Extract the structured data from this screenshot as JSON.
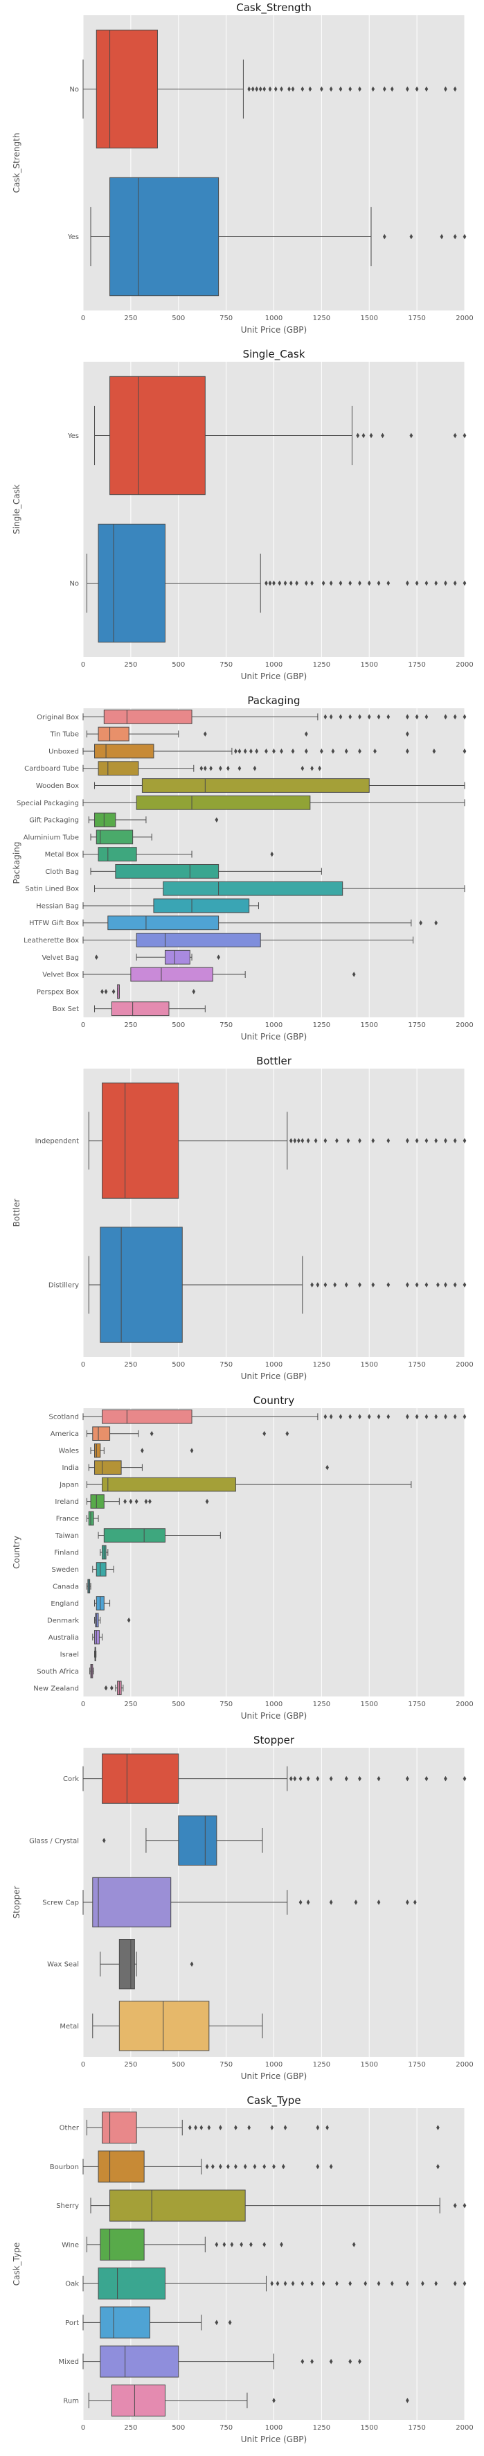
{
  "chart_data": [
    {
      "type": "boxplot-horizontal",
      "title": "Cask_Strength",
      "xlabel": "Unit Price (GBP)",
      "ylabel": "Cask_Strength",
      "xlim": [
        0,
        2000
      ],
      "xticks": [
        "0",
        "250",
        "500",
        "750",
        "1000",
        "1250",
        "1500",
        "1750",
        "2000"
      ],
      "grid": true,
      "categories": [
        {
          "label": "No",
          "color": "#D9533F",
          "min": 0,
          "q1": 70,
          "median": 140,
          "q3": 390,
          "max": 840,
          "outliers": [
            870,
            890,
            910,
            930,
            950,
            980,
            1010,
            1040,
            1080,
            1100,
            1150,
            1190,
            1250,
            1300,
            1350,
            1400,
            1450,
            1520,
            1580,
            1620,
            1700,
            1750,
            1800,
            1900,
            1950
          ]
        },
        {
          "label": "Yes",
          "color": "#3A86BE",
          "min": 40,
          "q1": 140,
          "median": 290,
          "q3": 710,
          "max": 1510,
          "outliers": [
            1580,
            1720,
            1880,
            1950,
            2000
          ]
        }
      ]
    },
    {
      "type": "boxplot-horizontal",
      "title": "Single_Cask",
      "xlabel": "Unit Price (GBP)",
      "ylabel": "Single_Cask",
      "xlim": [
        0,
        2000
      ],
      "xticks": [
        "0",
        "250",
        "500",
        "750",
        "1000",
        "1250",
        "1500",
        "1750",
        "2000"
      ],
      "grid": true,
      "categories": [
        {
          "label": "Yes",
          "color": "#D9533F",
          "min": 60,
          "q1": 140,
          "median": 290,
          "q3": 640,
          "max": 1410,
          "outliers": [
            1440,
            1470,
            1510,
            1570,
            1720,
            1950,
            2000
          ]
        },
        {
          "label": "No",
          "color": "#3A86BE",
          "min": 20,
          "q1": 80,
          "median": 160,
          "q3": 430,
          "max": 930,
          "outliers": [
            960,
            980,
            1000,
            1030,
            1060,
            1090,
            1120,
            1170,
            1200,
            1260,
            1300,
            1350,
            1400,
            1450,
            1500,
            1550,
            1600,
            1700,
            1750,
            1800,
            1850,
            1900,
            1950,
            2000
          ]
        }
      ]
    },
    {
      "type": "boxplot-horizontal",
      "title": "Packaging",
      "xlabel": "Unit Price (GBP)",
      "ylabel": "Packaging",
      "xlim": [
        0,
        2000
      ],
      "xticks": [
        "0",
        "250",
        "500",
        "750",
        "1000",
        "1250",
        "1500",
        "1750",
        "2000"
      ],
      "grid": true,
      "categories": [
        {
          "label": "Original Box",
          "color": "#E8888A",
          "min": 0,
          "q1": 110,
          "median": 230,
          "q3": 570,
          "max": 1230,
          "outliers": [
            1270,
            1300,
            1350,
            1400,
            1450,
            1500,
            1550,
            1600,
            1700,
            1750,
            1800,
            1900,
            1950,
            2000
          ]
        },
        {
          "label": "Tin Tube",
          "color": "#E8906A",
          "min": 20,
          "q1": 80,
          "median": 140,
          "q3": 240,
          "max": 500,
          "outliers": [
            640,
            1170,
            1700
          ]
        },
        {
          "label": "Unboxed",
          "color": "#C78A36",
          "min": 0,
          "q1": 60,
          "median": 120,
          "q3": 370,
          "max": 780,
          "outliers": [
            800,
            820,
            850,
            880,
            910,
            960,
            1000,
            1040,
            1100,
            1170,
            1250,
            1310,
            1380,
            1450,
            1530,
            1700,
            1840,
            2000
          ]
        },
        {
          "label": "Cardboard Tube",
          "color": "#B49336",
          "min": 0,
          "q1": 80,
          "median": 130,
          "q3": 290,
          "max": 580,
          "outliers": [
            620,
            640,
            670,
            720,
            760,
            820,
            900,
            1150,
            1200,
            1240
          ]
        },
        {
          "label": "Wooden Box",
          "color": "#A4A038",
          "min": 60,
          "q1": 310,
          "median": 640,
          "q3": 1500,
          "max": 2000,
          "outliers": []
        },
        {
          "label": "Special Packaging",
          "color": "#91A336",
          "min": 0,
          "q1": 280,
          "median": 570,
          "q3": 1190,
          "max": 2000,
          "outliers": []
        },
        {
          "label": "Gift Packaging",
          "color": "#58AA4A",
          "min": 30,
          "q1": 60,
          "median": 110,
          "q3": 170,
          "max": 330,
          "outliers": [
            700
          ]
        },
        {
          "label": "Aluminium Tube",
          "color": "#4AAA6A",
          "min": 40,
          "q1": 70,
          "median": 90,
          "q3": 260,
          "max": 360,
          "outliers": []
        },
        {
          "label": "Metal Box",
          "color": "#3EA77E",
          "min": 0,
          "q1": 80,
          "median": 130,
          "q3": 280,
          "max": 570,
          "outliers": [
            990
          ]
        },
        {
          "label": "Cloth Bag",
          "color": "#3AA690",
          "min": 40,
          "q1": 170,
          "median": 560,
          "q3": 710,
          "max": 1250,
          "outliers": []
        },
        {
          "label": "Satin Lined Box",
          "color": "#3CA8A5",
          "min": 60,
          "q1": 420,
          "median": 710,
          "q3": 1360,
          "max": 2000,
          "outliers": []
        },
        {
          "label": "Hessian Bag",
          "color": "#3AA5B4",
          "min": 0,
          "q1": 370,
          "median": 570,
          "q3": 870,
          "max": 920,
          "outliers": []
        },
        {
          "label": "HTFW Gift Box",
          "color": "#4FA3D4",
          "min": 0,
          "q1": 130,
          "median": 330,
          "q3": 710,
          "max": 1720,
          "outliers": [
            1770,
            1850
          ]
        },
        {
          "label": "Leatherette Box",
          "color": "#7F8EDC",
          "min": 0,
          "q1": 280,
          "median": 430,
          "q3": 930,
          "max": 1730,
          "outliers": []
        },
        {
          "label": "Velvet Bag",
          "color": "#A98AE0",
          "min": 280,
          "q1": 430,
          "median": 480,
          "q3": 560,
          "max": 570,
          "outliers": [
            70,
            710
          ]
        },
        {
          "label": "Velvet Box",
          "color": "#C98AD8",
          "min": 0,
          "q1": 250,
          "median": 410,
          "q3": 680,
          "max": 850,
          "outliers": [
            1420
          ]
        },
        {
          "label": "Perspex Box",
          "color": "#D987CC",
          "min": 180,
          "q1": 180,
          "median": 190,
          "q3": 190,
          "max": 190,
          "outliers": [
            100,
            120,
            160,
            580
          ]
        },
        {
          "label": "Box Set",
          "color": "#E48BB0",
          "min": 60,
          "q1": 150,
          "median": 260,
          "q3": 450,
          "max": 640,
          "outliers": []
        }
      ]
    },
    {
      "type": "boxplot-horizontal",
      "title": "Bottler",
      "xlabel": "Unit Price (GBP)",
      "ylabel": "Bottler",
      "xlim": [
        0,
        2000
      ],
      "xticks": [
        "0",
        "250",
        "500",
        "750",
        "1000",
        "1250",
        "1500",
        "1750",
        "2000"
      ],
      "grid": true,
      "categories": [
        {
          "label": "Independent",
          "color": "#D9533F",
          "min": 30,
          "q1": 100,
          "median": 220,
          "q3": 500,
          "max": 1070,
          "outliers": [
            1090,
            1110,
            1130,
            1150,
            1180,
            1220,
            1270,
            1330,
            1390,
            1450,
            1520,
            1600,
            1700,
            1750,
            1800,
            1850,
            1900,
            1950,
            2000
          ]
        },
        {
          "label": "Distillery",
          "color": "#3A86BE",
          "min": 30,
          "q1": 90,
          "median": 200,
          "q3": 520,
          "max": 1150,
          "outliers": [
            1200,
            1230,
            1270,
            1320,
            1380,
            1450,
            1520,
            1600,
            1700,
            1750,
            1800,
            1860,
            1900,
            1950,
            2000
          ]
        }
      ]
    },
    {
      "type": "boxplot-horizontal",
      "title": "Country",
      "xlabel": "Unit Price (GBP)",
      "ylabel": "Country",
      "xlim": [
        0,
        2000
      ],
      "xticks": [
        "0",
        "250",
        "500",
        "750",
        "1000",
        "1250",
        "1500",
        "1750",
        "2000"
      ],
      "grid": true,
      "categories": [
        {
          "label": "Scotland",
          "color": "#E8888A",
          "min": 0,
          "q1": 100,
          "median": 230,
          "q3": 570,
          "max": 1230,
          "outliers": [
            1270,
            1300,
            1350,
            1400,
            1450,
            1500,
            1550,
            1600,
            1700,
            1750,
            1800,
            1850,
            1900,
            1950,
            2000
          ]
        },
        {
          "label": "America",
          "color": "#E8906A",
          "min": 20,
          "q1": 50,
          "median": 80,
          "q3": 140,
          "max": 290,
          "outliers": [
            360,
            950,
            1070
          ]
        },
        {
          "label": "Wales",
          "color": "#C78A36",
          "min": 40,
          "q1": 60,
          "median": 70,
          "q3": 90,
          "max": 110,
          "outliers": [
            310,
            570
          ]
        },
        {
          "label": "India",
          "color": "#B49336",
          "min": 30,
          "q1": 60,
          "median": 100,
          "q3": 200,
          "max": 310,
          "outliers": [
            1280
          ]
        },
        {
          "label": "Japan",
          "color": "#A4A038",
          "min": 20,
          "q1": 100,
          "median": 130,
          "q3": 800,
          "max": 1720,
          "outliers": []
        },
        {
          "label": "Ireland",
          "color": "#58AA4A",
          "min": 20,
          "q1": 40,
          "median": 70,
          "q3": 110,
          "max": 190,
          "outliers": [
            220,
            250,
            280,
            330,
            350,
            650
          ]
        },
        {
          "label": "France",
          "color": "#4AAA6A",
          "min": 20,
          "q1": 30,
          "median": 40,
          "q3": 55,
          "max": 80,
          "outliers": []
        },
        {
          "label": "Taiwan",
          "color": "#3EA77E",
          "min": 80,
          "q1": 110,
          "median": 320,
          "q3": 430,
          "max": 720,
          "outliers": []
        },
        {
          "label": "Finland",
          "color": "#3AA690",
          "min": 90,
          "q1": 100,
          "median": 110,
          "q3": 120,
          "max": 130,
          "outliers": []
        },
        {
          "label": "Sweden",
          "color": "#3CA8A5",
          "min": 50,
          "q1": 70,
          "median": 90,
          "q3": 120,
          "max": 160,
          "outliers": []
        },
        {
          "label": "Canada",
          "color": "#3AA5B4",
          "min": 20,
          "q1": 25,
          "median": 30,
          "q3": 35,
          "max": 40,
          "outliers": []
        },
        {
          "label": "England",
          "color": "#4FA3D4",
          "min": 60,
          "q1": 70,
          "median": 90,
          "q3": 110,
          "max": 140,
          "outliers": []
        },
        {
          "label": "Denmark",
          "color": "#7F8EDC",
          "min": 60,
          "q1": 65,
          "median": 70,
          "q3": 80,
          "max": 90,
          "outliers": [
            240
          ]
        },
        {
          "label": "Australia",
          "color": "#A98AE0",
          "min": 50,
          "q1": 60,
          "median": 70,
          "q3": 85,
          "max": 100,
          "outliers": []
        },
        {
          "label": "Israel",
          "color": "#C98AD8",
          "min": 60,
          "q1": 62,
          "median": 64,
          "q3": 66,
          "max": 68,
          "outliers": []
        },
        {
          "label": "South Africa",
          "color": "#D987CC",
          "min": 35,
          "q1": 40,
          "median": 45,
          "q3": 50,
          "max": 55,
          "outliers": []
        },
        {
          "label": "New Zealand",
          "color": "#E48BB0",
          "min": 170,
          "q1": 180,
          "median": 190,
          "q3": 200,
          "max": 210,
          "outliers": [
            120,
            150
          ]
        }
      ]
    },
    {
      "type": "boxplot-horizontal",
      "title": "Stopper",
      "xlabel": "Unit Price (GBP)",
      "ylabel": "Stopper",
      "xlim": [
        0,
        2000
      ],
      "xticks": [
        "0",
        "250",
        "500",
        "750",
        "1000",
        "1250",
        "1500",
        "1750",
        "2000"
      ],
      "grid": true,
      "categories": [
        {
          "label": "Cork",
          "color": "#D9533F",
          "min": 0,
          "q1": 100,
          "median": 230,
          "q3": 500,
          "max": 1070,
          "outliers": [
            1090,
            1110,
            1140,
            1180,
            1230,
            1300,
            1380,
            1450,
            1550,
            1700,
            1800,
            1900,
            2000
          ]
        },
        {
          "label": "Glass / Crystal",
          "color": "#3A86BE",
          "min": 330,
          "q1": 500,
          "median": 640,
          "q3": 700,
          "max": 940,
          "outliers": [
            110
          ]
        },
        {
          "label": "Screw Cap",
          "color": "#9B8FD6",
          "min": 0,
          "q1": 50,
          "median": 80,
          "q3": 460,
          "max": 1070,
          "outliers": [
            1140,
            1180,
            1300,
            1430,
            1550,
            1700,
            1740
          ]
        },
        {
          "label": "Wax Seal",
          "color": "#6E6E6E",
          "min": 90,
          "q1": 190,
          "median": 250,
          "q3": 270,
          "max": 280,
          "outliers": [
            570
          ]
        },
        {
          "label": "Metal",
          "color": "#E6B86A",
          "min": 50,
          "q1": 190,
          "median": 420,
          "q3": 660,
          "max": 940,
          "outliers": []
        }
      ]
    },
    {
      "type": "boxplot-horizontal",
      "title": "Cask_Type",
      "xlabel": "Unit Price (GBP)",
      "ylabel": "Cask_Type",
      "xlim": [
        0,
        2000
      ],
      "xticks": [
        "0",
        "250",
        "500",
        "750",
        "1000",
        "1250",
        "1500",
        "1750",
        "2000"
      ],
      "grid": true,
      "categories": [
        {
          "label": "Other",
          "color": "#E8888A",
          "min": 20,
          "q1": 100,
          "median": 140,
          "q3": 280,
          "max": 520,
          "outliers": [
            560,
            590,
            620,
            660,
            720,
            800,
            870,
            990,
            1060,
            1230,
            1280,
            1860
          ]
        },
        {
          "label": "Bourbon",
          "color": "#C78A36",
          "min": 0,
          "q1": 80,
          "median": 140,
          "q3": 320,
          "max": 620,
          "outliers": [
            650,
            680,
            720,
            760,
            800,
            850,
            900,
            950,
            1000,
            1050,
            1230,
            1300,
            1860
          ]
        },
        {
          "label": "Sherry",
          "color": "#A4A038",
          "min": 40,
          "q1": 140,
          "median": 360,
          "q3": 850,
          "max": 1870,
          "outliers": [
            1950,
            2000
          ]
        },
        {
          "label": "Wine",
          "color": "#58AA4A",
          "min": 20,
          "q1": 90,
          "median": 140,
          "q3": 320,
          "max": 640,
          "outliers": [
            700,
            740,
            780,
            830,
            880,
            950,
            1040,
            1420
          ]
        },
        {
          "label": "Oak",
          "color": "#3AA690",
          "min": 0,
          "q1": 80,
          "median": 180,
          "q3": 430,
          "max": 960,
          "outliers": [
            990,
            1020,
            1060,
            1100,
            1150,
            1200,
            1260,
            1330,
            1400,
            1480,
            1550,
            1620,
            1700,
            1780,
            1850,
            1950,
            2000
          ]
        },
        {
          "label": "Port",
          "color": "#4FA3D4",
          "min": 0,
          "q1": 90,
          "median": 160,
          "q3": 350,
          "max": 620,
          "outliers": [
            700,
            770
          ]
        },
        {
          "label": "Mixed",
          "color": "#8F8EDC",
          "min": 0,
          "q1": 90,
          "median": 220,
          "q3": 500,
          "max": 1000,
          "outliers": [
            1150,
            1200,
            1300,
            1400,
            1450
          ]
        },
        {
          "label": "Rum",
          "color": "#E48BB0",
          "min": 30,
          "q1": 150,
          "median": 270,
          "q3": 430,
          "max": 860,
          "outliers": [
            1000,
            1700
          ]
        }
      ]
    }
  ]
}
